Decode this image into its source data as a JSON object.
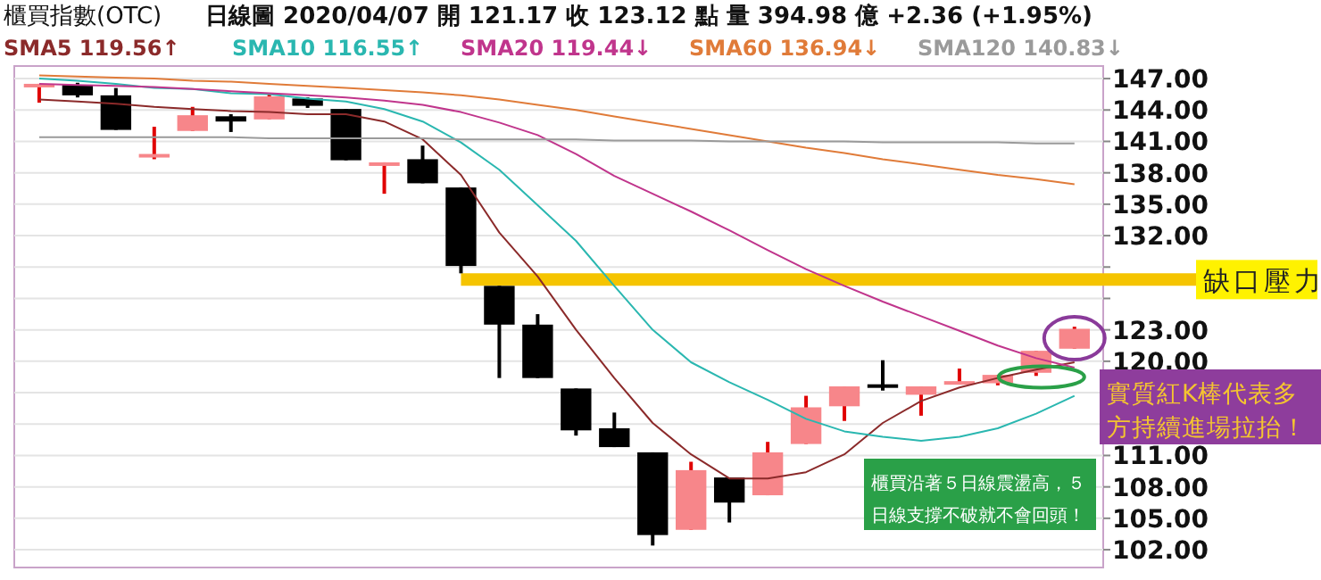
{
  "chart_data": {
    "type": "candlestick",
    "title": "櫃買指數(OTC)",
    "subtitle": "日線圖  2020/04/07  開 121.17  收 123.12  點  量 394.98 億  +2.36 (+1.95%)",
    "categories": [
      null,
      null,
      null,
      null,
      null,
      null,
      null,
      null,
      null,
      null,
      null,
      null,
      null,
      null,
      null,
      null,
      null,
      null,
      null,
      null,
      null,
      null,
      null,
      null,
      null,
      null,
      null,
      null
    ],
    "colors": [
      "#f7868a",
      "#000000",
      "#000000",
      "#f7868a",
      "#f7868a",
      "#000000",
      "#f7868a",
      "#000000",
      "#000000",
      "#f7868a",
      "#000000",
      "#000000",
      "#000000",
      "#000000",
      "#000000",
      "#000000",
      "#000000",
      "#f7868a",
      "#000000",
      "#f7868a",
      "#f7868a",
      "#f7868a",
      "#000000",
      "#f7868a",
      "#f7868a",
      "#f7868a",
      "#f7868a",
      "#f7868a"
    ],
    "ohlc": [
      [
        146.3,
        146.5,
        144.7,
        146.5
      ],
      [
        146.4,
        146.6,
        145.2,
        145.4
      ],
      [
        145.4,
        146.1,
        142.1,
        142.1
      ],
      [
        139.5,
        142.4,
        139.3,
        139.8
      ],
      [
        142.0,
        144.3,
        142.0,
        143.5
      ],
      [
        143.4,
        143.6,
        141.9,
        142.9
      ],
      [
        143.1,
        145.5,
        143.1,
        145.3
      ],
      [
        145.1,
        145.2,
        144.2,
        144.4
      ],
      [
        144.1,
        144.1,
        139.2,
        139.2
      ],
      [
        138.8,
        139.0,
        136.0,
        139.0
      ],
      [
        139.3,
        140.6,
        137.0,
        137.0
      ],
      [
        136.6,
        136.6,
        128.4,
        129.1
      ],
      [
        127.2,
        127.2,
        118.4,
        123.5
      ],
      [
        123.5,
        124.5,
        118.4,
        118.4
      ],
      [
        117.4,
        117.4,
        112.9,
        113.4
      ],
      [
        113.6,
        115.1,
        111.8,
        111.8
      ],
      [
        111.3,
        111.3,
        102.4,
        103.4
      ],
      [
        103.9,
        110.4,
        103.9,
        109.6
      ],
      [
        108.9,
        108.9,
        104.6,
        106.5
      ],
      [
        107.2,
        112.3,
        107.2,
        111.3
      ],
      [
        112.1,
        116.7,
        112.1,
        115.6
      ],
      [
        115.7,
        117.6,
        114.3,
        117.6
      ],
      [
        117.8,
        120.1,
        117.2,
        117.6
      ],
      [
        116.8,
        117.6,
        114.8,
        117.6
      ],
      [
        117.9,
        119.3,
        117.9,
        118.1
      ],
      [
        117.9,
        118.7,
        117.7,
        118.7
      ],
      [
        118.9,
        121.0,
        118.6,
        121.0
      ],
      [
        121.2,
        123.3,
        121.2,
        123.1
      ]
    ],
    "series": [
      {
        "type": "line",
        "name": "SMA5 119.56↑",
        "color": "#8b2a2a",
        "values": [
          145.0,
          144.8,
          144.6,
          144.3,
          144.1,
          143.9,
          143.8,
          143.6,
          143.6,
          142.9,
          141.2,
          137.8,
          132.3,
          128.1,
          123.0,
          118.4,
          114.1,
          111.1,
          108.8,
          108.8,
          109.4,
          111.1,
          114.1,
          116.2,
          117.5,
          118.4,
          119.2,
          119.9
        ]
      },
      {
        "type": "line",
        "name": "SMA10 116.55↑",
        "color": "#2ab7b0",
        "values": [
          147.0,
          146.8,
          146.5,
          146.1,
          146.0,
          145.6,
          145.5,
          145.1,
          144.8,
          144.1,
          142.9,
          140.9,
          138.3,
          134.9,
          131.5,
          127.2,
          123.0,
          119.9,
          118.0,
          116.3,
          114.5,
          113.3,
          112.8,
          112.4,
          112.8,
          113.6,
          115.0,
          116.7
        ]
      },
      {
        "type": "line",
        "name": "SMA20 119.44↓",
        "color": "#c0358c",
        "values": [
          146.5,
          146.4,
          146.3,
          146.2,
          146.0,
          145.8,
          145.6,
          145.4,
          145.2,
          144.9,
          144.5,
          143.8,
          142.8,
          141.6,
          139.8,
          137.7,
          136.0,
          134.3,
          132.5,
          130.6,
          128.8,
          127.2,
          125.7,
          124.3,
          122.9,
          121.5,
          120.3,
          119.4
        ]
      },
      {
        "type": "line",
        "name": "SMA60 136.94↓",
        "color": "#e07b39",
        "values": [
          147.3,
          147.2,
          147.1,
          147.0,
          146.8,
          146.7,
          146.5,
          146.3,
          146.1,
          145.9,
          145.7,
          145.4,
          145.0,
          144.5,
          144.0,
          143.4,
          142.8,
          142.2,
          141.6,
          141.0,
          140.4,
          139.9,
          139.3,
          138.8,
          138.3,
          137.8,
          137.4,
          136.9
        ]
      },
      {
        "type": "line",
        "name": "SMA120 140.83↓",
        "color": "#9a9a9a",
        "values": [
          141.4,
          141.4,
          141.4,
          141.4,
          141.4,
          141.4,
          141.3,
          141.3,
          141.3,
          141.3,
          141.3,
          141.2,
          141.2,
          141.2,
          141.2,
          141.1,
          141.1,
          141.1,
          141.0,
          141.0,
          141.0,
          141.0,
          140.9,
          140.9,
          140.9,
          140.9,
          140.8,
          140.8
        ]
      }
    ],
    "ylim": [
      100.3,
      148.2
    ],
    "yticks": [
      {
        "value": 147,
        "label": "147.00"
      },
      {
        "value": 144,
        "label": "144.00"
      },
      {
        "value": 141,
        "label": "141.00"
      },
      {
        "value": 138,
        "label": "138.00"
      },
      {
        "value": 135,
        "label": "135.00"
      },
      {
        "value": 132,
        "label": "132.00"
      },
      {
        "value": 129,
        "label": null
      },
      {
        "value": 126,
        "label": null
      },
      {
        "value": 123,
        "label": "123.00"
      },
      {
        "value": 120,
        "label": "120.00"
      },
      {
        "value": 117,
        "label": null
      },
      {
        "value": 114,
        "label": null
      },
      {
        "value": 111,
        "label": "111.00"
      },
      {
        "value": 108,
        "label": "108.00"
      },
      {
        "value": 105,
        "label": "105.00"
      },
      {
        "value": 102,
        "label": "102.00"
      }
    ],
    "ref_lines": [
      {
        "axis": "y",
        "value": 127.8,
        "label": "缺口壓力",
        "color": "#f5c400"
      }
    ],
    "annotations": [
      "實質紅K棒代表多方持續進場拉抬！",
      "櫃買沿著５日線震盪高，５日線支撐不破就不會回頭！"
    ],
    "grid": "y",
    "legend": "top",
    "marker": "none",
    "line_style": "solid"
  }
}
